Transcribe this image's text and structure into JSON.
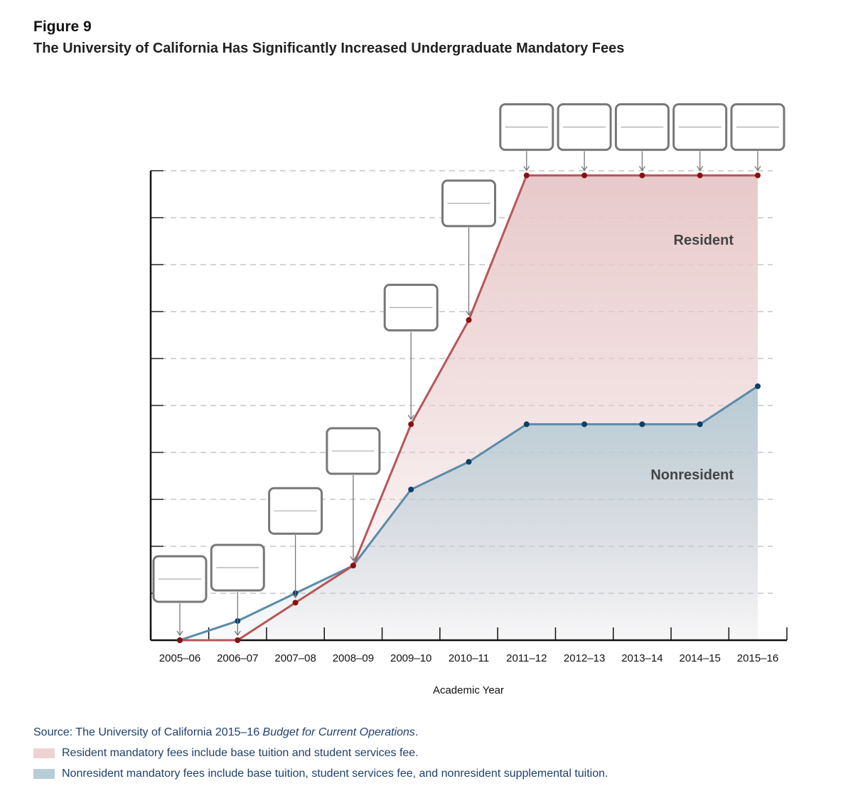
{
  "figure_label": "Figure 9",
  "chart_data": {
    "type": "area",
    "title": "The University of California Has Significantly Increased Undergraduate Mandatory Fees",
    "xlabel": "Academic Year",
    "ylabel": "",
    "y_units": "relative (gridline intervals; no y tick labels shown)",
    "ylim": [
      0,
      10
    ],
    "grid": "horizontal dashed",
    "categories": [
      "2005–06",
      "2006–07",
      "2007–08",
      "2008–09",
      "2009–10",
      "2010–11",
      "2011–12",
      "2012–13",
      "2013–14",
      "2014–15",
      "2015–16"
    ],
    "series": [
      {
        "name": "Resident",
        "color": "#b5575a",
        "marker_color": "#8b1010",
        "fill": "#e8c9ca",
        "values": [
          0,
          0,
          0.8,
          1.59,
          4.6,
          6.82,
          9.9,
          9.9,
          9.9,
          9.9,
          9.9
        ]
      },
      {
        "name": "Nonresident",
        "color": "#5b8ba8",
        "marker_color": "#0e3f63",
        "fill": "#b7cbd5",
        "values": [
          0,
          0.41,
          1.0,
          1.59,
          3.21,
          3.8,
          4.6,
          4.6,
          4.6,
          4.6,
          5.41
        ]
      }
    ],
    "annotations": [
      "Resident",
      "Nonresident"
    ]
  },
  "source": {
    "prefix": "Source:  The University of California 2015–16 ",
    "italic": "Budget for Current Operations",
    "suffix": "."
  },
  "legend": [
    {
      "label": "Resident mandatory fees include base tuition and student services fee.",
      "color": "#ecd3d3"
    },
    {
      "label": "Nonresident mandatory fees include base tuition, student services fee, and nonresident supplemental tuition.",
      "color": "#b9cdd6"
    }
  ]
}
